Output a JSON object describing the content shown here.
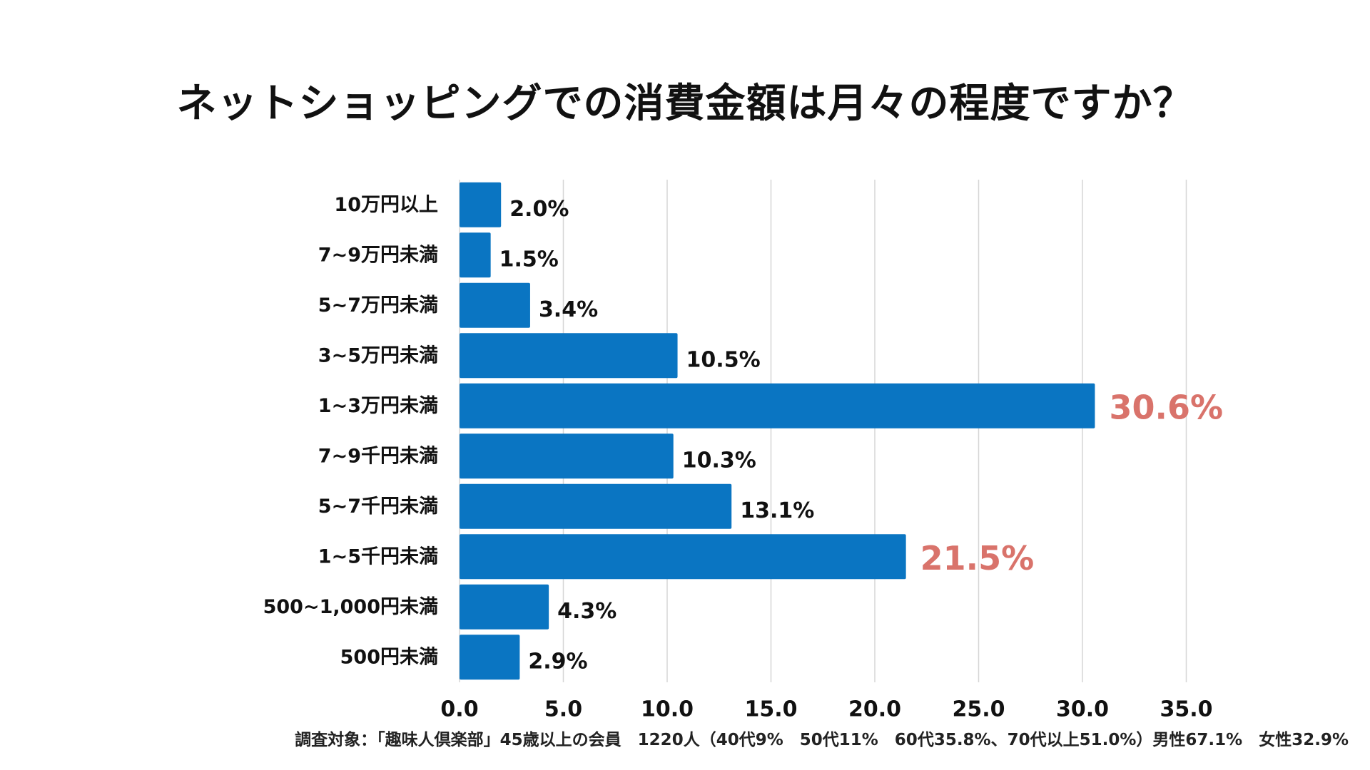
{
  "chart_data": {
    "type": "bar",
    "orientation": "horizontal",
    "title": "ネットショッピングでの消費金額は月々の程度ですか？",
    "categories": [
      "10万円以上",
      "7~9万円未満",
      "5~7万円未満",
      "3~5万円未満",
      "1~3万円未満",
      "7~9千円未満",
      "5~7千円未満",
      "1~5千円未満",
      "500~1,000円未満",
      "500円未満"
    ],
    "values": [
      2.0,
      1.5,
      3.4,
      10.5,
      30.6,
      10.3,
      13.1,
      21.5,
      4.3,
      2.9
    ],
    "value_labels": [
      "2.0%",
      "1.5%",
      "3.4%",
      "10.5%",
      "30.6%",
      "10.3%",
      "13.1%",
      "21.5%",
      "4.3%",
      "2.9%"
    ],
    "highlighted": [
      false,
      false,
      false,
      false,
      true,
      false,
      false,
      true,
      false,
      false
    ],
    "x_ticks": [
      0,
      5,
      10,
      15,
      20,
      25,
      30,
      35
    ],
    "x_tick_labels": [
      "0.0",
      "5.0",
      "10.0",
      "15.0",
      "20.0",
      "25.0",
      "30.0",
      "35.0"
    ],
    "xlim": [
      0,
      35
    ],
    "xlabel": "",
    "ylabel": "",
    "grid": true,
    "colors": {
      "bar": "#0a75c2",
      "highlight_label": "#d9736b",
      "label": "#111111",
      "grid": "#d6d6d6"
    }
  },
  "footnote": "調査対象：「趣味人倶楽部」45歳以上の会員　1220人（40代9%　50代11%　60代35.8%、70代以上51.0%）男性67.1%　女性32.9%"
}
